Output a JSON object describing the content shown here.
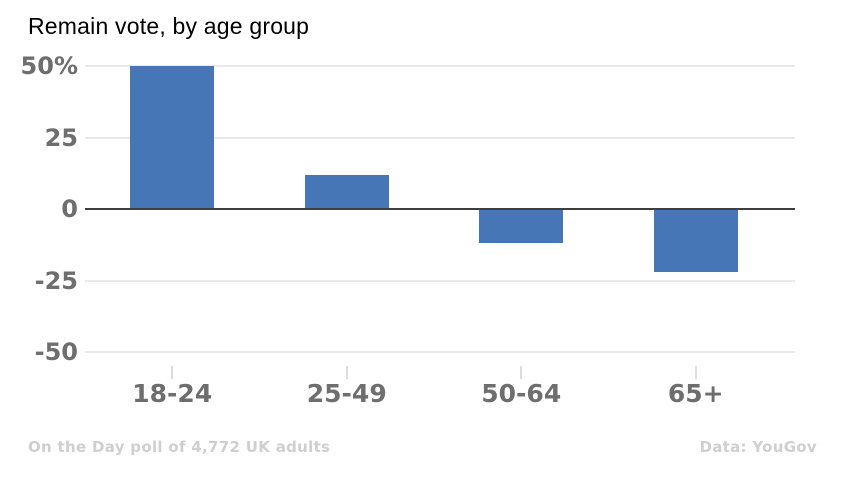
{
  "title": "Remain vote, by age group",
  "footer": {
    "left": "On the Day poll of 4,772 UK adults",
    "right": "Data: YouGov"
  },
  "chart_data": {
    "type": "bar",
    "title": "Remain vote, by age group",
    "categories": [
      "18-24",
      "25-49",
      "50-64",
      "65+"
    ],
    "values": [
      50,
      12,
      -12,
      -22
    ],
    "xlabel": "",
    "ylabel": "",
    "ylim": [
      -50,
      50
    ],
    "yticks": [
      {
        "value": 50,
        "label": "50%"
      },
      {
        "value": 25,
        "label": "25"
      },
      {
        "value": 0,
        "label": "0"
      },
      {
        "value": -25,
        "label": "-25"
      },
      {
        "value": -50,
        "label": "-50"
      }
    ],
    "grid": true,
    "legend": false,
    "bar_color": "#4676b5"
  }
}
